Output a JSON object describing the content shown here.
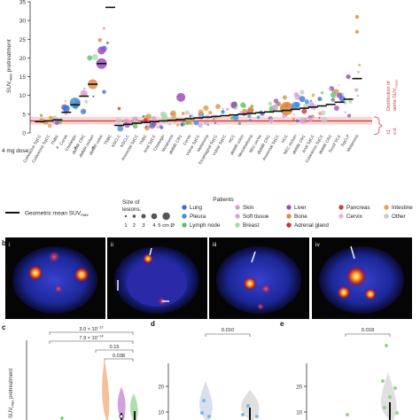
{
  "chart_data": [
    {
      "panel": "a",
      "type": "scatter",
      "ylabel_main": "SUV",
      "ylabel_sub": "max",
      "ylabel_tail": " pretreatment",
      "ylim": [
        0,
        35
      ],
      "yticks": [
        0,
        5,
        10,
        15,
        20,
        25,
        30,
        35
      ],
      "dose_label": "4 mg dose:",
      "band_label_1": "Distribution of",
      "band_label_2": "aorta SUV",
      "band_label_3": "mean",
      "band_sd_1": "±1",
      "band_sd_2": "s.d.",
      "reference_line": 3.2,
      "band": [
        2.2,
        4.3
      ],
      "categories": [
        "Cutaneous SqCC",
        "Cutaneous SqCC",
        "TNBC",
        "Cervix",
        "Cholangio",
        "dMMR CRC",
        "dMMR rectum",
        "dMMR colon",
        "TNBC",
        "NSCLC",
        "NSCLC",
        "Anorectal SqCC",
        "TNBC",
        "Anal SqCC",
        "Cholangio",
        "Melanoma",
        "dMMR CRC",
        "Cervix",
        "Vulvar SqCC",
        "Melanoma",
        "Esophageal SqCC",
        "Vulvar SqCC",
        "HCC",
        "dMMR colon",
        "Mesothelioma",
        "NEC cervix",
        "dMMR CRC",
        "Anorectal SqCC",
        "HCC",
        "NEC rectum",
        "dMMR CRC",
        "Anal SqCC",
        "Cutaneous SqCC",
        "dMMR CRC",
        "Tonsil SCC",
        "SqCLP",
        "Melanoma"
      ],
      "geo_means": [
        3.0,
        3.2,
        3.5,
        5.5,
        7.5,
        9.8,
        13.0,
        18.5,
        33.5,
        2.0,
        2.3,
        2.6,
        2.8,
        3.0,
        3.2,
        3.4,
        3.6,
        3.8,
        4.0,
        4.2,
        4.4,
        4.6,
        4.8,
        5.0,
        5.2,
        5.4,
        5.6,
        5.8,
        6.0,
        6.3,
        6.6,
        6.9,
        7.2,
        7.6,
        8.2,
        9.0,
        14.5
      ],
      "dose_markers": [
        false,
        false,
        true,
        false,
        true,
        false,
        true,
        false,
        false,
        false,
        false,
        false,
        false,
        false,
        false,
        false,
        false,
        false,
        false,
        false,
        false,
        false,
        false,
        false,
        false,
        false,
        false,
        false,
        false,
        false,
        false,
        false,
        false,
        false,
        false,
        false,
        false
      ]
    },
    {
      "panel": "c",
      "type": "violin",
      "ylabel": "SUV",
      "ylabel_sub": "max",
      "ylabel_tail": " pretreatment",
      "ylim": [
        0,
        40
      ],
      "yticks": [
        0,
        10,
        20,
        30,
        40
      ],
      "comparisons": [
        {
          "label": "3.0 × 10",
          "exp": "−12"
        },
        {
          "label": "7.9 × 10",
          "exp": "−14"
        },
        {
          "label": "0.15",
          "exp": ""
        },
        {
          "label": "0.038",
          "exp": ""
        }
      ]
    },
    {
      "panel": "d",
      "type": "violin",
      "p_value": "0.010",
      "yticks": [
        10,
        20
      ]
    },
    {
      "panel": "e",
      "type": "violin",
      "p_value": "0.018",
      "yticks": [
        10,
        20
      ]
    }
  ],
  "colors": {
    "lung": "#3a6fd8",
    "pleura": "#3f8fd6",
    "lymph_node": "#5cc35c",
    "skin": "#d9a0c8",
    "soft_tissue": "#d0a8d8",
    "breast": "#a8d8a8",
    "liver": "#9c4fb8",
    "bone": "#e08a3c",
    "adrenal_gland": "#c8303a",
    "pancreas": "#d04040",
    "cervix": "#e8b8d0",
    "intestine": "#e8a050",
    "other": "#c8c8c8",
    "band": "#f6c8c8",
    "ref_line": "#d83030",
    "band_text": "#d84040",
    "geo_mean": "#111111"
  },
  "legend": {
    "geo_mean_label": "Geometric mean SUV",
    "geo_mean_sub": "max",
    "size_title": "Size of",
    "size_title_2": "lesions:",
    "size_labels": [
      "1",
      "2",
      "3",
      "4",
      "5 cm Ø"
    ],
    "patients_title": "Patients",
    "items": [
      {
        "label": "Lung",
        "color": "#3a6fd8",
        "icon": "dot-icon"
      },
      {
        "label": "Skin",
        "color": "#d9a0c8",
        "icon": "dot-icon"
      },
      {
        "label": "Liver",
        "color": "#9c4fb8",
        "icon": "dot-icon"
      },
      {
        "label": "Pancreas",
        "color": "#d04040",
        "icon": "dot-icon"
      },
      {
        "label": "Intestine",
        "color": "#e8a050",
        "icon": "dot-icon"
      },
      {
        "label": "Pleura",
        "color": "#3f8fd6",
        "icon": "dot-icon"
      },
      {
        "label": "Soft tissue",
        "color": "#d0a8d8",
        "icon": "dot-icon"
      },
      {
        "label": "Bone",
        "color": "#e08a3c",
        "icon": "dot-icon"
      },
      {
        "label": "Cervix",
        "color": "#e8b8d0",
        "icon": "dot-icon"
      },
      {
        "label": "Other",
        "color": "#c8c8c8",
        "icon": "dot-icon"
      },
      {
        "label": "Lymph node",
        "color": "#5cc35c",
        "icon": "dot-icon"
      },
      {
        "label": "Breast",
        "color": "#a8d8a8",
        "icon": "dot-icon"
      },
      {
        "label": "Adrenal gland",
        "color": "#c8303a",
        "icon": "dot-icon"
      }
    ]
  },
  "panel_b": {
    "label": "b",
    "tiles": [
      "i",
      "ii",
      "iii",
      "iv"
    ]
  },
  "panel_labels": {
    "c": "c",
    "d": "d",
    "e": "e"
  }
}
